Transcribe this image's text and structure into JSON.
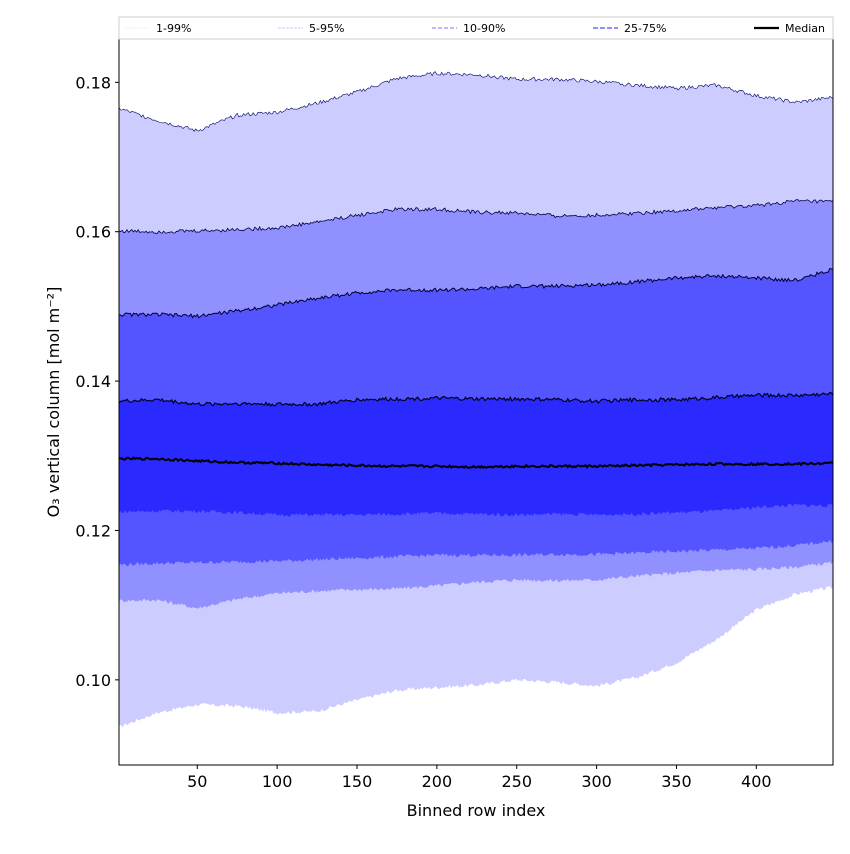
{
  "chart_data": {
    "type": "area",
    "title": "",
    "xlabel": "Binned row index",
    "ylabel": "O₃ vertical column [mol m⁻²]",
    "xlim": [
      1,
      448
    ],
    "ylim": [
      0.0886,
      0.1858
    ],
    "xticks": [
      50,
      100,
      150,
      200,
      250,
      300,
      350,
      400
    ],
    "xtick_labels": [
      "50",
      "100",
      "150",
      "200",
      "250",
      "300",
      "350",
      "400"
    ],
    "yticks": [
      0.1,
      0.12,
      0.14,
      0.16,
      0.18
    ],
    "ytick_labels": [
      "0.10",
      "0.12",
      "0.14",
      "0.16",
      "0.18"
    ],
    "grid": false,
    "legend_placement": "top, above plot",
    "legend": [
      {
        "label": "1-99%",
        "color": "#d8d8ff"
      },
      {
        "label": "5-95%",
        "color": "#b8b8ff"
      },
      {
        "label": "10-90%",
        "color": "#9090ff"
      },
      {
        "label": "25-75%",
        "color": "#6a6aff"
      },
      {
        "label": "Median",
        "color": "#000000"
      }
    ],
    "x": [
      1,
      25,
      50,
      75,
      100,
      125,
      150,
      175,
      200,
      225,
      250,
      275,
      300,
      325,
      350,
      375,
      400,
      425,
      448
    ],
    "percentiles": {
      "p1": [
        0.0937,
        0.0956,
        0.0967,
        0.0965,
        0.0956,
        0.0958,
        0.0973,
        0.0986,
        0.099,
        0.0993,
        0.1,
        0.0997,
        0.0992,
        0.1003,
        0.1023,
        0.1054,
        0.1094,
        0.1115,
        0.1124
      ],
      "p5": [
        0.1106,
        0.1107,
        0.1096,
        0.1108,
        0.1116,
        0.1119,
        0.1121,
        0.1122,
        0.1126,
        0.1131,
        0.1134,
        0.1133,
        0.1134,
        0.1139,
        0.1143,
        0.1147,
        0.1148,
        0.1151,
        0.1157
      ],
      "p10": [
        0.1154,
        0.1156,
        0.1157,
        0.1158,
        0.1159,
        0.1161,
        0.1163,
        0.1165,
        0.1167,
        0.1167,
        0.1167,
        0.1168,
        0.1168,
        0.117,
        0.1172,
        0.1174,
        0.1176,
        0.118,
        0.1186
      ],
      "p25": [
        0.1225,
        0.1226,
        0.1226,
        0.1224,
        0.1221,
        0.1221,
        0.1221,
        0.1222,
        0.1223,
        0.1222,
        0.1221,
        0.1222,
        0.1221,
        0.1222,
        0.1224,
        0.1226,
        0.1231,
        0.1234,
        0.1233
      ],
      "median": [
        0.1296,
        0.1296,
        0.1293,
        0.1291,
        0.129,
        0.1288,
        0.1287,
        0.1286,
        0.1286,
        0.1285,
        0.1286,
        0.1286,
        0.1286,
        0.1287,
        0.1288,
        0.1289,
        0.1289,
        0.1289,
        0.129
      ],
      "p75": [
        0.1373,
        0.1375,
        0.1369,
        0.137,
        0.1369,
        0.1369,
        0.1375,
        0.1376,
        0.1377,
        0.1376,
        0.1376,
        0.1375,
        0.1373,
        0.1375,
        0.1375,
        0.1378,
        0.1381,
        0.1381,
        0.1383
      ],
      "p90": [
        0.1489,
        0.1489,
        0.1487,
        0.1494,
        0.1502,
        0.1511,
        0.1518,
        0.1522,
        0.1522,
        0.1523,
        0.1527,
        0.1527,
        0.1529,
        0.1533,
        0.1538,
        0.1541,
        0.1538,
        0.1535,
        0.155
      ],
      "p95": [
        0.1601,
        0.16,
        0.1601,
        0.1603,
        0.1605,
        0.1613,
        0.1622,
        0.163,
        0.163,
        0.1626,
        0.1625,
        0.1621,
        0.1622,
        0.1625,
        0.1628,
        0.1632,
        0.1635,
        0.1641,
        0.164
      ],
      "p99": [
        0.1765,
        0.1749,
        0.1735,
        0.1756,
        0.176,
        0.1772,
        0.1787,
        0.1805,
        0.1812,
        0.181,
        0.1804,
        0.1804,
        0.1801,
        0.1796,
        0.1792,
        0.1796,
        0.1782,
        0.1773,
        0.178
      ]
    },
    "band_colors": {
      "1-99": "#ccccff",
      "5-95": "#9090ff",
      "10-90": "#5555ff",
      "25-75": "#2a2aff"
    }
  }
}
